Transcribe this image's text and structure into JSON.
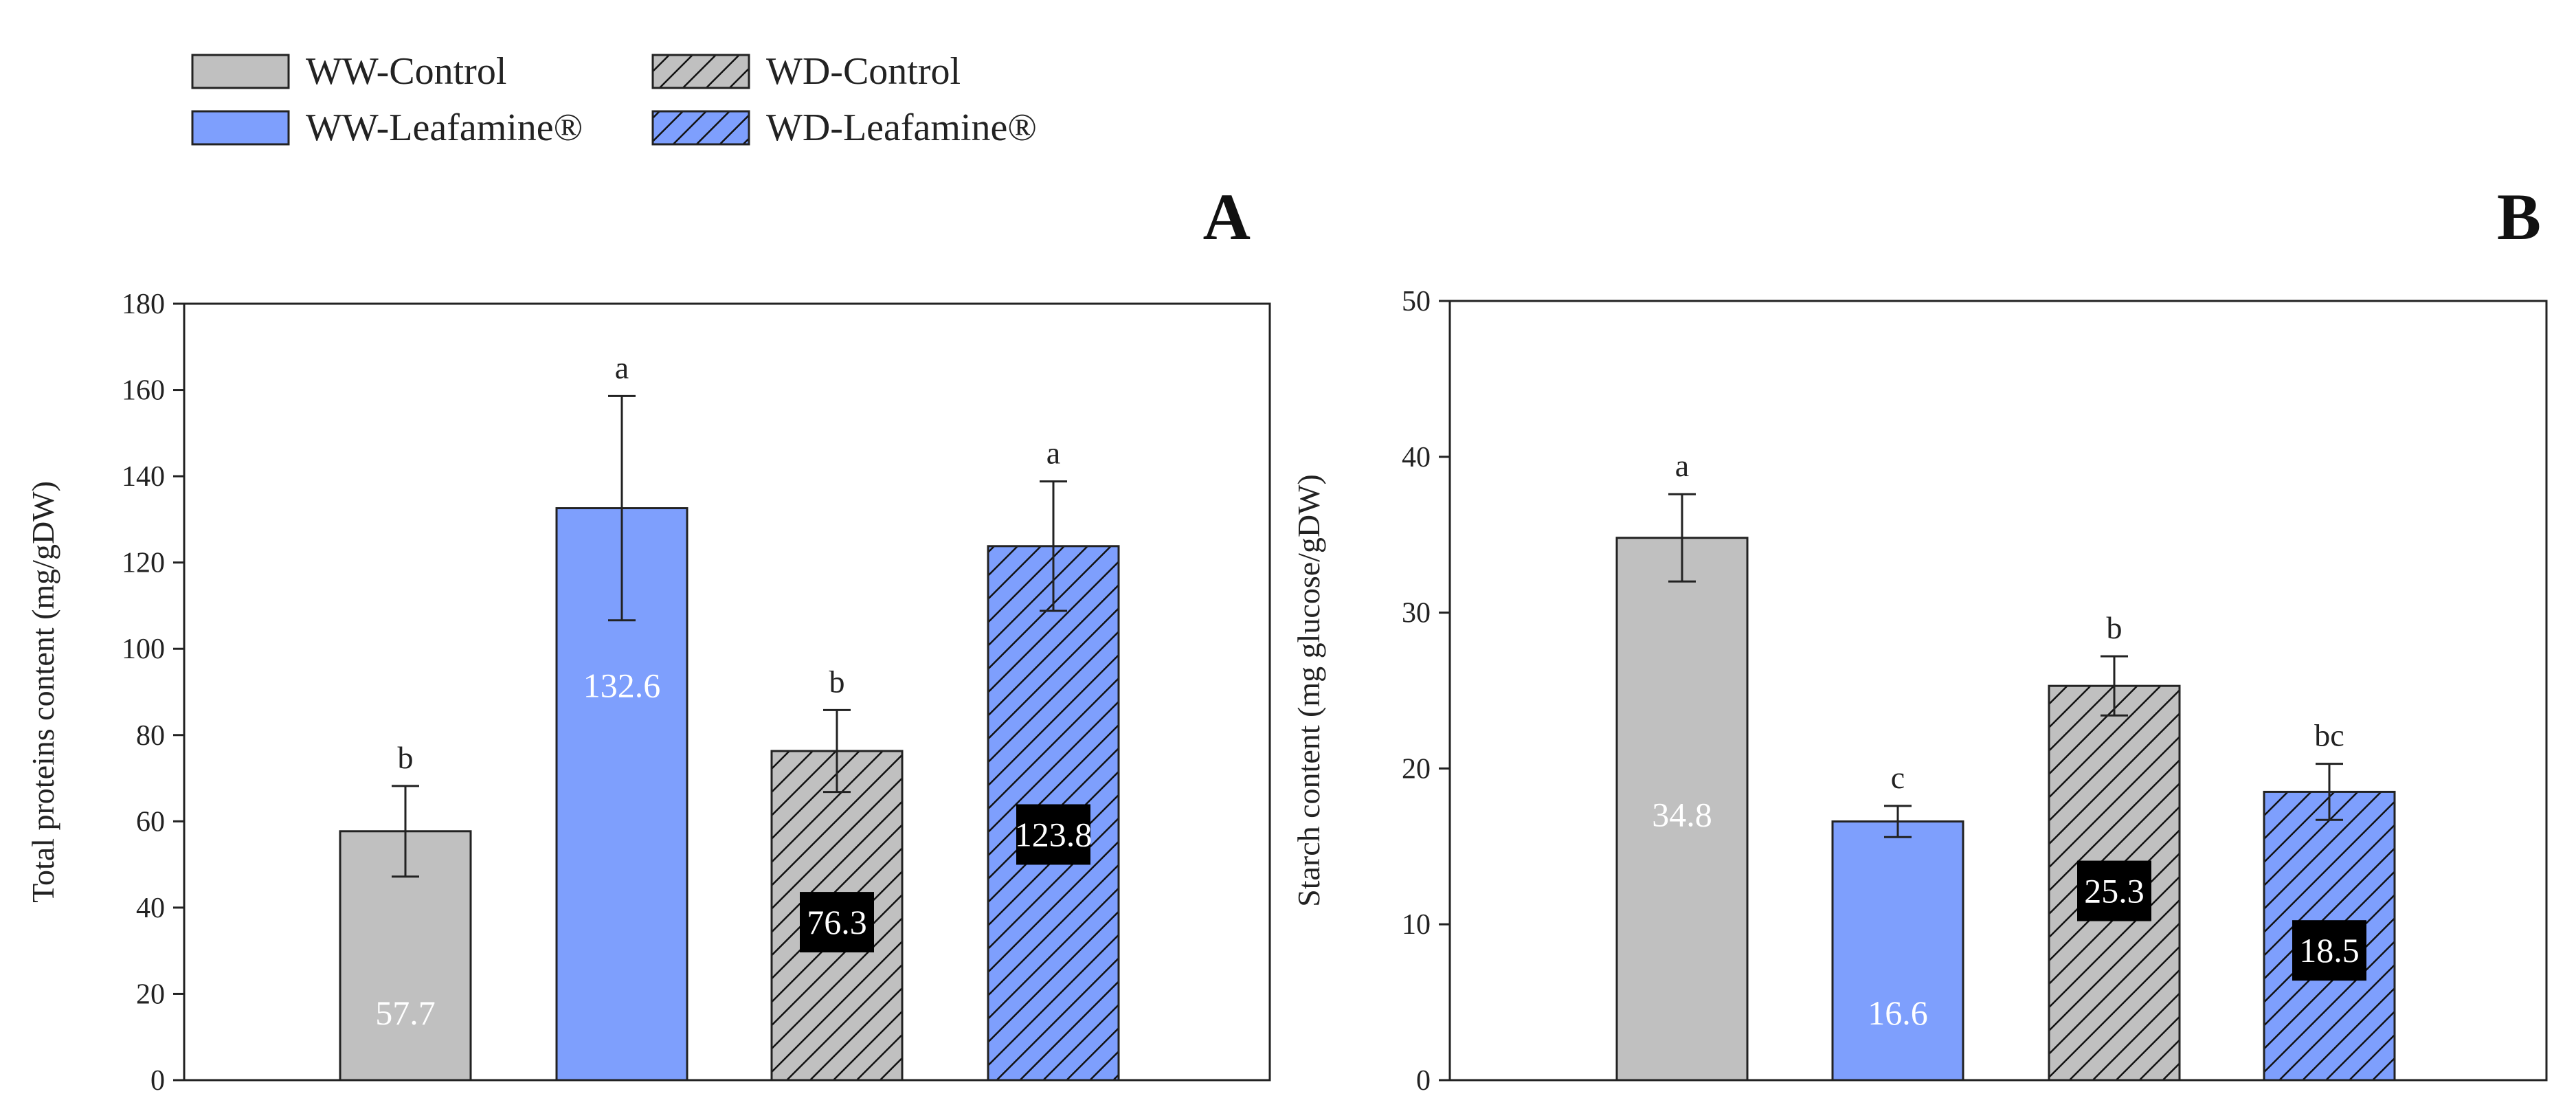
{
  "legend": {
    "items": [
      {
        "label": "WW-Control",
        "fill": "#c0c0c0",
        "hatch": false
      },
      {
        "label": "WW-Leafamine®",
        "fill": "#7e9ffd",
        "hatch": false
      },
      {
        "label": "WD-Control",
        "fill": "#c0c0c0",
        "hatch": true
      },
      {
        "label": "WD-Leafamine®",
        "fill": "#7e9ffd",
        "hatch": true
      }
    ]
  },
  "colors": {
    "control": "#c0c0c0",
    "leafamine": "#7e9ffd",
    "axis": "#222222",
    "label_box": "#000000",
    "label_text_on_box": "#ffffff",
    "label_text_plain": "#ffffff"
  },
  "chart_data": [
    {
      "panel": "A",
      "type": "bar",
      "ylabel": "Total proteins content (mg/gDW)",
      "xlabel": "",
      "ylim": [
        0,
        180
      ],
      "yticks": [
        0,
        20,
        40,
        60,
        80,
        100,
        120,
        140,
        160,
        180
      ],
      "categories": [
        "WW-Control",
        "WW-Leafamine®",
        "WD-Control",
        "WD-Leafamine®"
      ],
      "values": [
        57.7,
        132.6,
        76.3,
        123.8
      ],
      "value_labels": [
        "57.7",
        "132.6",
        "76.3",
        "123.8"
      ],
      "errors": [
        10.5,
        26.0,
        9.5,
        15.0
      ],
      "significance": [
        "b",
        "a",
        "b",
        "a"
      ],
      "value_label_boxed": [
        false,
        false,
        true,
        true
      ],
      "value_label_position": [
        0.27,
        0.69,
        0.48,
        0.46
      ],
      "hatch": [
        false,
        false,
        true,
        true
      ],
      "colors": [
        "#c0c0c0",
        "#7e9ffd",
        "#c0c0c0",
        "#7e9ffd"
      ]
    },
    {
      "panel": "B",
      "type": "bar",
      "ylabel": "Starch content (mg glucose/gDW)",
      "xlabel": "",
      "ylim": [
        0,
        50
      ],
      "yticks": [
        0,
        10,
        20,
        30,
        40,
        50
      ],
      "categories": [
        "WW-Control",
        "WW-Leafamine®",
        "WD-Control",
        "WD-Leafamine®"
      ],
      "values": [
        34.8,
        16.6,
        25.3,
        18.5
      ],
      "value_labels": [
        "34.8",
        "16.6",
        "25.3",
        "18.5"
      ],
      "errors": [
        2.8,
        1.0,
        1.9,
        1.8
      ],
      "significance": [
        "a",
        "c",
        "b",
        "bc"
      ],
      "value_label_boxed": [
        false,
        false,
        true,
        true
      ],
      "value_label_position": [
        0.49,
        0.26,
        0.48,
        0.45
      ],
      "hatch": [
        false,
        false,
        true,
        true
      ],
      "colors": [
        "#c0c0c0",
        "#7e9ffd",
        "#c0c0c0",
        "#7e9ffd"
      ]
    }
  ]
}
